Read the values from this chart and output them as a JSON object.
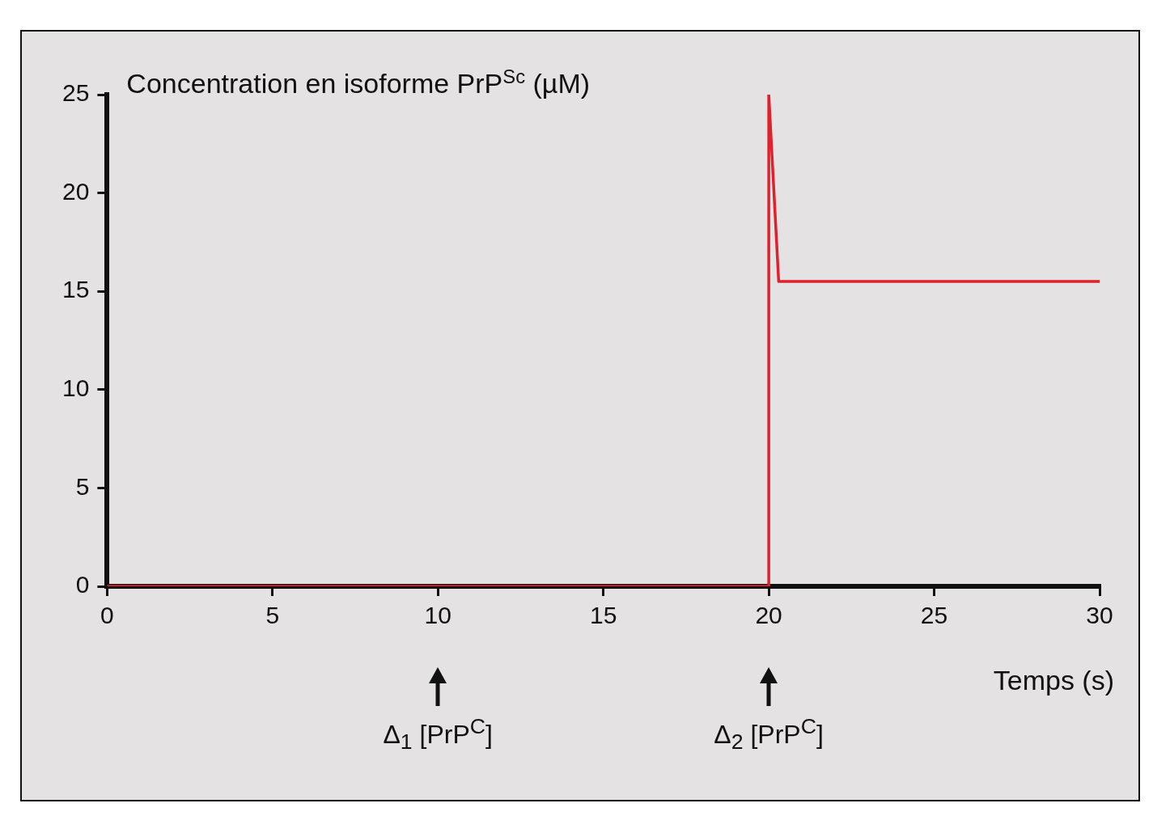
{
  "chart_data": {
    "type": "line",
    "ylabel": "Concentration en isoforme PrP$^{Sc}$ (µM)",
    "xlabel": "Temps (s)",
    "x": [
      0,
      20,
      20,
      20.3,
      30
    ],
    "series": [
      {
        "color": "#e0202a",
        "values": [
          0,
          0,
          25,
          15.5,
          15.5
        ]
      }
    ],
    "xlim": [
      0,
      30
    ],
    "xticks": [
      0,
      5,
      10,
      15,
      20,
      25,
      30
    ],
    "ylim": [
      0,
      25
    ],
    "yticks": [
      0,
      5,
      10,
      15,
      20,
      25
    ],
    "annotations": [
      "Δ$_{1}$ [PrP$^{C}$]",
      "Δ$_{2}$ [PrP$^{C}$]"
    ],
    "grid": false,
    "legend": false,
    "marker": "none",
    "line_style": "solid"
  }
}
